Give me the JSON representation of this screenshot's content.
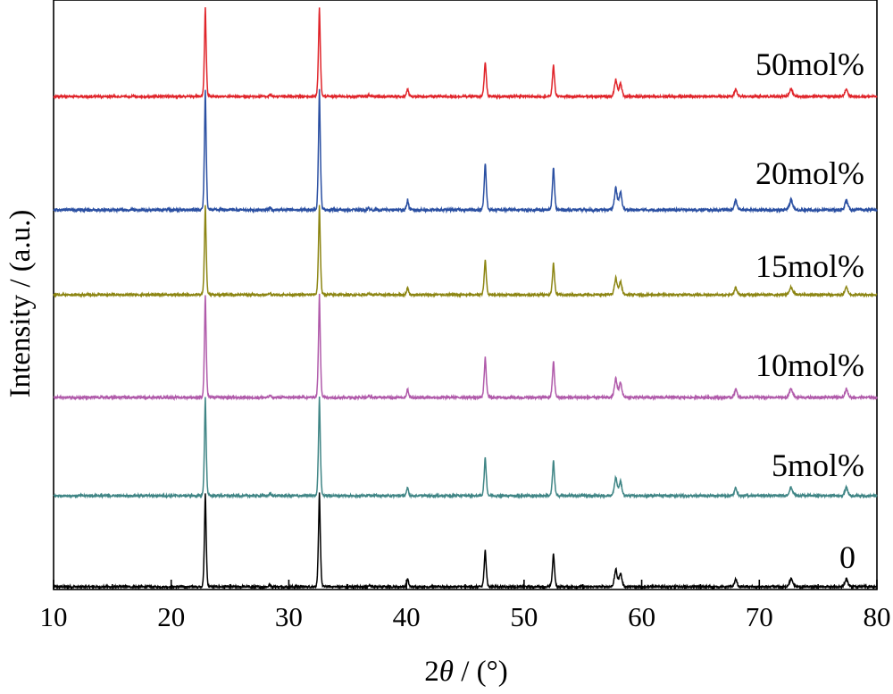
{
  "chart_data": {
    "type": "line",
    "title": "",
    "xlabel": {
      "prefix": "2",
      "symbol": "θ",
      "suffix": " / (°)"
    },
    "ylabel": "Intensity / (a.u.)",
    "xlim": [
      10,
      80
    ],
    "x_ticks": [
      10,
      20,
      30,
      40,
      50,
      60,
      70,
      80
    ],
    "y_ticks_shown": false,
    "grid": false,
    "legend": "none",
    "peak_positions_2theta": [
      22.9,
      28.4,
      32.6,
      36.8,
      40.1,
      46.7,
      52.5,
      57.8,
      58.2,
      68.0,
      72.7,
      77.4
    ],
    "peak_relative_intensities": [
      1.0,
      0.02,
      1.0,
      0.015,
      0.085,
      0.39,
      0.36,
      0.19,
      0.15,
      0.085,
      0.085,
      0.085
    ],
    "series": [
      {
        "name": "0",
        "color": "#000000"
      },
      {
        "name": "5mol%",
        "color": "#3f8585"
      },
      {
        "name": "10mol%",
        "color": "#b05aaa"
      },
      {
        "name": "15mol%",
        "color": "#8c8512"
      },
      {
        "name": "20mol%",
        "color": "#2a4fa2"
      },
      {
        "name": "50mol%",
        "color": "#e0242a"
      }
    ]
  }
}
